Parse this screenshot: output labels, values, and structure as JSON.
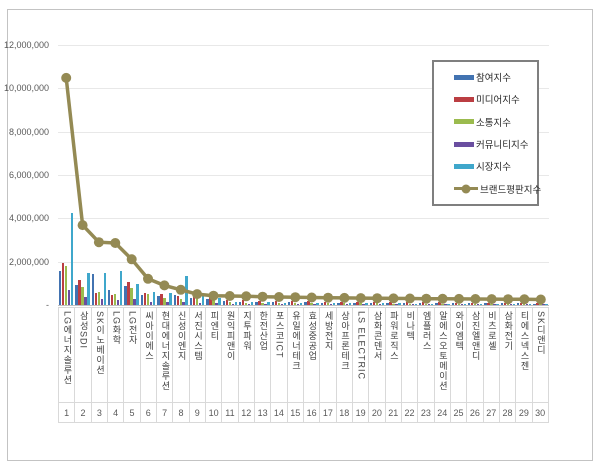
{
  "chart_data": {
    "type": "bar",
    "subtype": "grouped-bars-with-line-overlay",
    "title": "",
    "xlabel": "",
    "ylabel": "",
    "grid": true,
    "legend_position": "top-right",
    "y_axis": {
      "min": 0,
      "max": 12000000,
      "tick_interval": 2000000,
      "tick_values": [
        12000000,
        10000000,
        8000000,
        6000000,
        4000000,
        2000000,
        0
      ],
      "tick_labels": [
        "12,000,000",
        "10,000,000",
        "8,000,000",
        "6,000,000",
        "4,000,000",
        "2,000,000",
        "-"
      ]
    },
    "categories": [
      "LG에너지솔루션",
      "삼성SDI",
      "SK이노베이션",
      "LG화학",
      "LG전자",
      "씨아이에스",
      "현대에너지솔루션",
      "신성이엔지",
      "서진시스템",
      "피엔티",
      "원익피앤이",
      "지투파워",
      "한전산업",
      "포스코ICT",
      "유일에너테크",
      "효성중공업",
      "세방전지",
      "상아프론테크",
      "LS ELECTRIC",
      "삼화콘덴서",
      "파워로직스",
      "비나텍",
      "엠플러스",
      "알에스오토메이션",
      "와이엠텍",
      "삼진엘앤디",
      "비츠로셀",
      "삼화전기",
      "티에스넥스젠",
      "SK디앤디"
    ],
    "category_numbers": [
      "1",
      "2",
      "3",
      "4",
      "5",
      "6",
      "7",
      "8",
      "9",
      "10",
      "11",
      "12",
      "13",
      "14",
      "15",
      "16",
      "17",
      "18",
      "19",
      "20",
      "21",
      "22",
      "23",
      "24",
      "25",
      "26",
      "27",
      "28",
      "29",
      "30"
    ],
    "series": [
      {
        "name": "참여지수",
        "type": "bar",
        "color": "#4273b1",
        "values": [
          1560000,
          920000,
          1410000,
          700000,
          860000,
          460000,
          430000,
          450000,
          310000,
          280000,
          190000,
          160000,
          150000,
          140000,
          130000,
          120000,
          110000,
          105000,
          100000,
          95000,
          90000,
          88000,
          85000,
          82000,
          80000,
          78000,
          75000,
          72000,
          70000,
          68000
        ]
      },
      {
        "name": "미디어지수",
        "type": "bar",
        "color": "#bb3e42",
        "values": [
          1950000,
          1160000,
          560000,
          460000,
          1040000,
          560000,
          510000,
          400000,
          380000,
          350000,
          230000,
          210000,
          195000,
          185000,
          175000,
          165000,
          155000,
          148000,
          142000,
          136000,
          130000,
          126000,
          122000,
          118000,
          114000,
          110000,
          106000,
          102000,
          98000,
          94000
        ]
      },
      {
        "name": "소통지수",
        "type": "bar",
        "color": "#9bbb4e",
        "values": [
          1800000,
          810000,
          610000,
          510000,
          800000,
          500000,
          330000,
          300000,
          255000,
          225000,
          130000,
          115000,
          105000,
          98000,
          92000,
          87000,
          82000,
          78000,
          74000,
          71000,
          68000,
          65000,
          62000,
          60000,
          58000,
          56000,
          54000,
          52000,
          50000,
          48000
        ]
      },
      {
        "name": "커뮤니티지수",
        "type": "bar",
        "color": "#6a4ea0",
        "values": [
          710000,
          350000,
          280000,
          230000,
          300000,
          150000,
          125000,
          120000,
          100000,
          82000,
          52000,
          47000,
          44000,
          41000,
          39000,
          37000,
          35000,
          33000,
          31000,
          29000,
          28000,
          27000,
          26000,
          25000,
          24000,
          23000,
          22000,
          21000,
          20000,
          19000
        ]
      },
      {
        "name": "시장지수",
        "type": "bar",
        "color": "#3fa7cb",
        "values": [
          4230000,
          1460000,
          1500000,
          1560000,
          960000,
          610000,
          560000,
          1340000,
          460000,
          310000,
          160000,
          140000,
          125000,
          115000,
          105000,
          98000,
          92000,
          86000,
          80000,
          76000,
          72000,
          68000,
          64000,
          60000,
          56000,
          52000,
          48000,
          44000,
          40000,
          36000
        ]
      },
      {
        "name": "브랜드평판지수",
        "type": "line",
        "color": "#948a54",
        "values": [
          10480000,
          3690000,
          2900000,
          2860000,
          2110000,
          1210000,
          905000,
          700000,
          505000,
          430000,
          415000,
          400000,
          385000,
          370000,
          358000,
          347000,
          337000,
          328000,
          320000,
          312000,
          305000,
          298000,
          292000,
          286000,
          281000,
          276000,
          271000,
          266000,
          261000,
          256000
        ]
      }
    ]
  },
  "colors": {
    "gridline": "#e8e8e8",
    "axis": "#c0c0c0",
    "cell_border": "#d9d9d9",
    "tick_text": "#595959",
    "category_text": "#3f3f3f",
    "legend_border": "#7f7f7f",
    "figure_border": "#c3c3c3"
  }
}
